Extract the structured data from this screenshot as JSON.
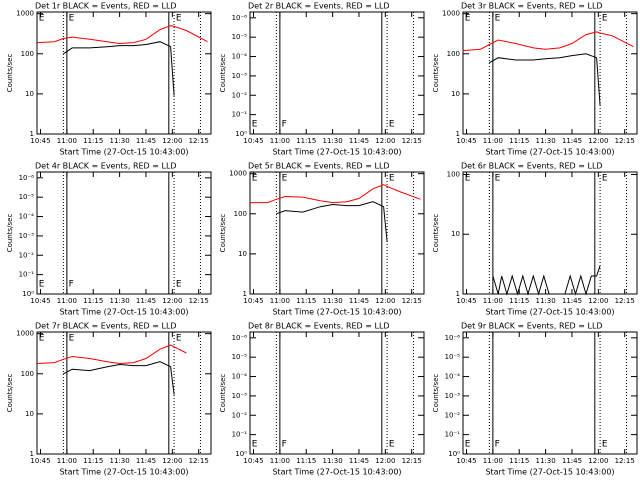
{
  "chart_data": [
    {
      "type": "line",
      "title": "Det 1r BLACK = Events, RED = LLD",
      "ylabel": "Counts/sec",
      "xlabel": "Start Time (27-Oct-15 10:43:00)",
      "log": true,
      "ylim": [
        1,
        1100
      ],
      "yticks": [
        1,
        10,
        100,
        1000
      ],
      "xlim": [
        0,
        99
      ],
      "xticks": [
        {
          "value": 2,
          "label": "10:45"
        },
        {
          "value": 17,
          "label": "11:00"
        },
        {
          "value": 32,
          "label": "11:15"
        },
        {
          "value": 47,
          "label": "11:30"
        },
        {
          "value": 62,
          "label": "11:45"
        },
        {
          "value": 77,
          "label": "12:00"
        },
        {
          "value": 92,
          "label": "12:15"
        }
      ],
      "vlines": [
        {
          "x": 15,
          "style": "dotted"
        },
        {
          "x": 17,
          "style": "solid"
        },
        {
          "x": 75,
          "style": "solid"
        },
        {
          "x": 78,
          "style": "dotted"
        },
        {
          "x": 93,
          "style": "dotted"
        }
      ],
      "flags": [
        {
          "x": 1,
          "label": "E",
          "pos": "top"
        },
        {
          "x": 18,
          "label": "E",
          "pos": "top"
        },
        {
          "x": 79,
          "label": "E",
          "pos": "top"
        }
      ],
      "x": [
        0,
        10,
        15,
        20,
        30,
        40,
        47,
        55,
        62,
        70,
        76,
        78,
        85,
        97
      ],
      "series": [
        {
          "color": "#ff0000",
          "values": [
            190,
            200,
            240,
            260,
            230,
            200,
            180,
            190,
            230,
            400,
            500,
            480,
            380,
            200
          ]
        },
        {
          "color": "#000000",
          "values": [
            null,
            null,
            100,
            140,
            140,
            150,
            160,
            160,
            170,
            200,
            150,
            9,
            null,
            null
          ]
        }
      ]
    },
    {
      "type": "line",
      "title": "Det 2r BLACK = Events, RED = LLD",
      "ylabel": "Counts/sec",
      "xlabel": "Start Time (27-Oct-15 10:43:00)",
      "log": false,
      "ylim": [
        0,
        6.3
      ],
      "yticks": [
        {
          "value": 0,
          "label": "10⁰"
        },
        {
          "value": 1,
          "label": "10⁻¹"
        },
        {
          "value": 2,
          "label": "10⁻²"
        },
        {
          "value": 3,
          "label": "10⁻³"
        },
        {
          "value": 4,
          "label": "10⁻⁴"
        },
        {
          "value": 5,
          "label": "10⁻⁵"
        },
        {
          "value": 6,
          "label": "10⁻⁶"
        }
      ],
      "xlim": [
        0,
        99
      ],
      "xticks": [
        {
          "value": 2,
          "label": "10:45"
        },
        {
          "value": 17,
          "label": "11:00"
        },
        {
          "value": 32,
          "label": "11:15"
        },
        {
          "value": 47,
          "label": "11:30"
        },
        {
          "value": 62,
          "label": "11:45"
        },
        {
          "value": 77,
          "label": "12:00"
        },
        {
          "value": 92,
          "label": "12:15"
        }
      ],
      "vlines": [
        {
          "x": 15,
          "style": "dotted"
        },
        {
          "x": 17,
          "style": "solid"
        },
        {
          "x": 75,
          "style": "solid"
        },
        {
          "x": 78,
          "style": "dotted"
        },
        {
          "x": 93,
          "style": "dotted"
        }
      ],
      "flags": [
        {
          "x": 1,
          "label": "E",
          "pos": "bottom"
        },
        {
          "x": 18,
          "label": "F",
          "pos": "bottom"
        },
        {
          "x": 79,
          "label": "E",
          "pos": "bottom"
        }
      ],
      "x": [],
      "series": []
    },
    {
      "type": "line",
      "title": "Det 3r BLACK = Events, RED = LLD",
      "ylabel": "Counts/sec",
      "xlabel": "Start Time (27-Oct-15 10:43:00)",
      "log": true,
      "ylim": [
        1,
        1100
      ],
      "yticks": [
        1,
        10,
        100,
        1000
      ],
      "xlim": [
        0,
        99
      ],
      "xticks": [
        {
          "value": 2,
          "label": "10:45"
        },
        {
          "value": 17,
          "label": "11:00"
        },
        {
          "value": 32,
          "label": "11:15"
        },
        {
          "value": 47,
          "label": "11:30"
        },
        {
          "value": 62,
          "label": "11:45"
        },
        {
          "value": 77,
          "label": "12:00"
        },
        {
          "value": 92,
          "label": "12:15"
        }
      ],
      "vlines": [
        {
          "x": 15,
          "style": "dotted"
        },
        {
          "x": 17,
          "style": "solid"
        },
        {
          "x": 75,
          "style": "solid"
        },
        {
          "x": 78,
          "style": "dotted"
        },
        {
          "x": 93,
          "style": "dotted"
        }
      ],
      "flags": [
        {
          "x": 1,
          "label": "E",
          "pos": "top"
        },
        {
          "x": 18,
          "label": "E",
          "pos": "top"
        },
        {
          "x": 79,
          "label": "E",
          "pos": "top"
        }
      ],
      "x": [
        0,
        10,
        15,
        20,
        30,
        40,
        47,
        55,
        62,
        70,
        76,
        78,
        85,
        97
      ],
      "series": [
        {
          "color": "#ff0000",
          "values": [
            120,
            130,
            170,
            220,
            180,
            140,
            130,
            140,
            180,
            300,
            350,
            330,
            280,
            150
          ]
        },
        {
          "color": "#000000",
          "values": [
            null,
            null,
            60,
            80,
            70,
            70,
            75,
            80,
            90,
            100,
            80,
            5,
            null,
            null
          ]
        }
      ]
    },
    {
      "type": "line",
      "title": "Det 4r BLACK = Events, RED = LLD",
      "ylabel": "Counts/sec",
      "xlabel": "Start Time (27-Oct-15 10:43:00)",
      "log": false,
      "ylim": [
        0,
        6.3
      ],
      "yticks": [
        {
          "value": 0,
          "label": "10⁰"
        },
        {
          "value": 1,
          "label": "10⁻¹"
        },
        {
          "value": 2,
          "label": "10⁻²"
        },
        {
          "value": 3,
          "label": "10⁻³"
        },
        {
          "value": 4,
          "label": "10⁻⁴"
        },
        {
          "value": 5,
          "label": "10⁻⁵"
        },
        {
          "value": 6,
          "label": "10⁻⁶"
        }
      ],
      "xlim": [
        0,
        99
      ],
      "xticks": [
        {
          "value": 2,
          "label": "10:45"
        },
        {
          "value": 17,
          "label": "11:00"
        },
        {
          "value": 32,
          "label": "11:15"
        },
        {
          "value": 47,
          "label": "11:30"
        },
        {
          "value": 62,
          "label": "11:45"
        },
        {
          "value": 77,
          "label": "12:00"
        },
        {
          "value": 92,
          "label": "12:15"
        }
      ],
      "vlines": [
        {
          "x": 15,
          "style": "dotted"
        },
        {
          "x": 17,
          "style": "solid"
        },
        {
          "x": 75,
          "style": "solid"
        },
        {
          "x": 78,
          "style": "dotted"
        },
        {
          "x": 93,
          "style": "dotted"
        }
      ],
      "flags": [
        {
          "x": 1,
          "label": "E",
          "pos": "bottom"
        },
        {
          "x": 18,
          "label": "F",
          "pos": "bottom"
        },
        {
          "x": 79,
          "label": "E",
          "pos": "bottom"
        }
      ],
      "x": [],
      "series": []
    },
    {
      "type": "line",
      "title": "Det 5r BLACK = Events, RED = LLD",
      "ylabel": "Counts/sec",
      "xlabel": "Start Time (27-Oct-15 10:43:00)",
      "log": true,
      "ylim": [
        1,
        1100
      ],
      "yticks": [
        1,
        10,
        100,
        1000
      ],
      "xlim": [
        0,
        99
      ],
      "xticks": [
        {
          "value": 2,
          "label": "10:45"
        },
        {
          "value": 17,
          "label": "11:00"
        },
        {
          "value": 32,
          "label": "11:15"
        },
        {
          "value": 47,
          "label": "11:30"
        },
        {
          "value": 62,
          "label": "11:45"
        },
        {
          "value": 77,
          "label": "12:00"
        },
        {
          "value": 92,
          "label": "12:15"
        }
      ],
      "vlines": [
        {
          "x": 15,
          "style": "dotted"
        },
        {
          "x": 17,
          "style": "solid"
        },
        {
          "x": 75,
          "style": "solid"
        },
        {
          "x": 78,
          "style": "dotted"
        },
        {
          "x": 93,
          "style": "dotted"
        }
      ],
      "flags": [
        {
          "x": 1,
          "label": "E",
          "pos": "top"
        },
        {
          "x": 18,
          "label": "E",
          "pos": "top"
        },
        {
          "x": 79,
          "label": "E",
          "pos": "top"
        }
      ],
      "x": [
        0,
        10,
        15,
        20,
        30,
        40,
        47,
        55,
        62,
        70,
        76,
        78,
        85,
        97
      ],
      "series": [
        {
          "color": "#ff0000",
          "values": [
            190,
            190,
            230,
            270,
            260,
            210,
            190,
            200,
            240,
            420,
            530,
            480,
            360,
            230
          ]
        },
        {
          "color": "#000000",
          "values": [
            null,
            null,
            100,
            120,
            110,
            150,
            170,
            160,
            160,
            200,
            150,
            20,
            null,
            null
          ]
        }
      ]
    },
    {
      "type": "line",
      "title": "Det 6r BLACK = Events, RED = LLD",
      "ylabel": "Counts/sec",
      "xlabel": "Start Time (27-Oct-15 10:43:00)",
      "log": true,
      "ylim": [
        1,
        110
      ],
      "yticks": [
        1,
        10,
        100
      ],
      "xlim": [
        0,
        99
      ],
      "xticks": [
        {
          "value": 2,
          "label": "10:45"
        },
        {
          "value": 17,
          "label": "11:00"
        },
        {
          "value": 32,
          "label": "11:15"
        },
        {
          "value": 47,
          "label": "11:30"
        },
        {
          "value": 62,
          "label": "11:45"
        },
        {
          "value": 77,
          "label": "12:00"
        },
        {
          "value": 92,
          "label": "12:15"
        }
      ],
      "vlines": [
        {
          "x": 15,
          "style": "dotted"
        },
        {
          "x": 17,
          "style": "solid"
        },
        {
          "x": 75,
          "style": "solid"
        },
        {
          "x": 78,
          "style": "dotted"
        },
        {
          "x": 93,
          "style": "dotted"
        }
      ],
      "flags": [
        {
          "x": 1,
          "label": "E",
          "pos": "top"
        },
        {
          "x": 18,
          "label": "E",
          "pos": "top"
        },
        {
          "x": 79,
          "label": "E",
          "pos": "top"
        }
      ],
      "x": [
        17,
        20,
        22,
        25,
        28,
        31,
        34,
        37,
        40,
        43,
        46,
        49,
        52,
        55,
        58,
        61,
        64,
        67,
        70,
        73,
        76,
        78
      ],
      "series": [
        {
          "color": "#000000",
          "values": [
            2,
            1,
            2,
            1,
            2,
            1,
            2,
            1,
            2,
            1,
            2,
            1,
            1,
            1,
            1,
            2,
            1,
            2,
            1,
            2,
            2,
            3
          ]
        }
      ]
    },
    {
      "type": "line",
      "title": "Det 7r BLACK = Events, RED = LLD",
      "ylabel": "Counts/sec",
      "xlabel": "Start Time (27-Oct-15 10:43:00)",
      "log": true,
      "ylim": [
        1,
        1100
      ],
      "yticks": [
        1,
        10,
        100,
        1000
      ],
      "xlim": [
        0,
        99
      ],
      "xticks": [
        {
          "value": 2,
          "label": "10:45"
        },
        {
          "value": 17,
          "label": "11:00"
        },
        {
          "value": 32,
          "label": "11:15"
        },
        {
          "value": 47,
          "label": "11:30"
        },
        {
          "value": 62,
          "label": "11:45"
        },
        {
          "value": 77,
          "label": "12:00"
        },
        {
          "value": 92,
          "label": "12:15"
        }
      ],
      "vlines": [
        {
          "x": 15,
          "style": "dotted"
        },
        {
          "x": 17,
          "style": "solid"
        },
        {
          "x": 75,
          "style": "solid"
        },
        {
          "x": 78,
          "style": "dotted"
        },
        {
          "x": 93,
          "style": "dotted"
        }
      ],
      "flags": [
        {
          "x": 1,
          "label": "E",
          "pos": "top"
        },
        {
          "x": 18,
          "label": "E",
          "pos": "top"
        },
        {
          "x": 79,
          "label": "E",
          "pos": "top"
        }
      ],
      "x": [
        0,
        10,
        15,
        20,
        30,
        40,
        47,
        55,
        62,
        70,
        76,
        78,
        85,
        97
      ],
      "series": [
        {
          "color": "#ff0000",
          "values": [
            180,
            190,
            230,
            270,
            240,
            200,
            180,
            190,
            240,
            410,
            520,
            470,
            330,
            null
          ]
        },
        {
          "color": "#000000",
          "values": [
            null,
            null,
            100,
            130,
            120,
            150,
            170,
            160,
            160,
            200,
            150,
            30,
            null,
            null
          ]
        }
      ]
    },
    {
      "type": "line",
      "title": "Det 8r BLACK = Events, RED = LLD",
      "ylabel": "Counts/sec",
      "xlabel": "Start Time (27-Oct-15 10:43:00)",
      "log": false,
      "ylim": [
        0,
        6.3
      ],
      "yticks": [
        {
          "value": 0,
          "label": "10⁰"
        },
        {
          "value": 1,
          "label": "10⁻¹"
        },
        {
          "value": 2,
          "label": "10⁻²"
        },
        {
          "value": 3,
          "label": "10⁻³"
        },
        {
          "value": 4,
          "label": "10⁻⁴"
        },
        {
          "value": 5,
          "label": "10⁻⁵"
        },
        {
          "value": 6,
          "label": "10⁻⁶"
        }
      ],
      "xlim": [
        0,
        99
      ],
      "xticks": [
        {
          "value": 2,
          "label": "10:45"
        },
        {
          "value": 17,
          "label": "11:00"
        },
        {
          "value": 32,
          "label": "11:15"
        },
        {
          "value": 47,
          "label": "11:30"
        },
        {
          "value": 62,
          "label": "11:45"
        },
        {
          "value": 77,
          "label": "12:00"
        },
        {
          "value": 92,
          "label": "12:15"
        }
      ],
      "vlines": [
        {
          "x": 15,
          "style": "dotted"
        },
        {
          "x": 17,
          "style": "solid"
        },
        {
          "x": 75,
          "style": "solid"
        },
        {
          "x": 78,
          "style": "dotted"
        },
        {
          "x": 93,
          "style": "dotted"
        }
      ],
      "flags": [
        {
          "x": 1,
          "label": "E",
          "pos": "bottom"
        },
        {
          "x": 18,
          "label": "F",
          "pos": "bottom"
        },
        {
          "x": 79,
          "label": "E",
          "pos": "bottom"
        }
      ],
      "x": [],
      "series": []
    },
    {
      "type": "line",
      "title": "Det 9r BLACK = Events, RED = LLD",
      "ylabel": "Counts/sec",
      "xlabel": "Start Time (27-Oct-15 10:43:00)",
      "log": false,
      "ylim": [
        0,
        6.3
      ],
      "yticks": [
        {
          "value": 0,
          "label": "10⁰"
        },
        {
          "value": 1,
          "label": "10⁻¹"
        },
        {
          "value": 2,
          "label": "10⁻²"
        },
        {
          "value": 3,
          "label": "10⁻³"
        },
        {
          "value": 4,
          "label": "10⁻⁴"
        },
        {
          "value": 5,
          "label": "10⁻⁵"
        },
        {
          "value": 6,
          "label": "10⁻⁶"
        }
      ],
      "xlim": [
        0,
        99
      ],
      "xticks": [
        {
          "value": 2,
          "label": "10:45"
        },
        {
          "value": 17,
          "label": "11:00"
        },
        {
          "value": 32,
          "label": "11:15"
        },
        {
          "value": 47,
          "label": "11:30"
        },
        {
          "value": 62,
          "label": "11:45"
        },
        {
          "value": 77,
          "label": "12:00"
        },
        {
          "value": 92,
          "label": "12:15"
        }
      ],
      "vlines": [
        {
          "x": 15,
          "style": "dotted"
        },
        {
          "x": 17,
          "style": "solid"
        },
        {
          "x": 75,
          "style": "solid"
        },
        {
          "x": 78,
          "style": "dotted"
        },
        {
          "x": 93,
          "style": "dotted"
        }
      ],
      "flags": [
        {
          "x": 1,
          "label": "E",
          "pos": "bottom"
        },
        {
          "x": 18,
          "label": "F",
          "pos": "bottom"
        },
        {
          "x": 79,
          "label": "E",
          "pos": "bottom"
        }
      ],
      "x": [],
      "series": []
    }
  ]
}
